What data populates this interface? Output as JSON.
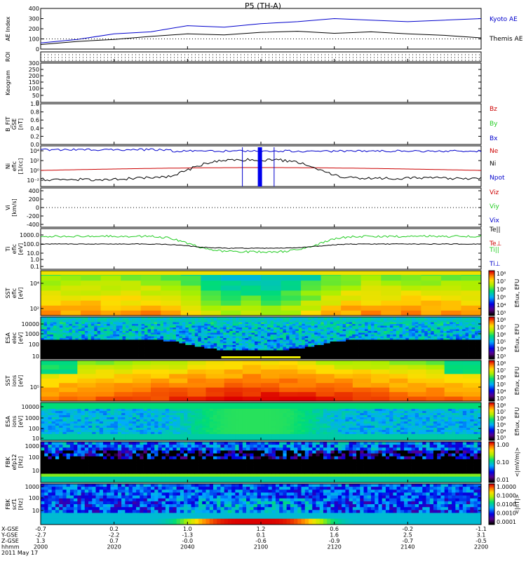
{
  "title": "P5 (TH-A)",
  "chart_data": [
    {
      "type": "line",
      "ylabel": [
        "AE Index"
      ],
      "ylim": [
        0,
        400
      ],
      "yticks": [
        "400",
        "300",
        "200",
        "100",
        "0"
      ],
      "series": [
        {
          "name": "Kyoto AE",
          "color": "#0000cc",
          "x": [
            0,
            10,
            20,
            30,
            40,
            50,
            60,
            70,
            80,
            90,
            100,
            110,
            120
          ],
          "values": [
            60,
            95,
            150,
            170,
            230,
            215,
            250,
            270,
            300,
            285,
            270,
            285,
            300
          ]
        },
        {
          "name": "Themis AE",
          "color": "#000000",
          "x": [
            0,
            10,
            20,
            30,
            40,
            50,
            60,
            70,
            80,
            90,
            100,
            110,
            120
          ],
          "values": [
            45,
            75,
            95,
            125,
            150,
            140,
            165,
            175,
            155,
            170,
            150,
            135,
            110
          ]
        }
      ]
    },
    {
      "type": "other",
      "ylabel": [
        "ROI"
      ]
    },
    {
      "type": "heatmap",
      "ylabel": [
        "Keogram"
      ],
      "ylim": [
        0,
        300
      ],
      "yticks": [
        "300",
        "250",
        "200",
        "150",
        "100",
        "50",
        "0"
      ]
    },
    {
      "type": "line",
      "ylabel": [
        "B_FIT",
        "GSE",
        "[nT]"
      ],
      "ylim": [
        0,
        1
      ],
      "yticks": [
        "1.0",
        "0.8",
        "0.6",
        "0.4",
        "0.2",
        "0.0"
      ],
      "series": [
        {
          "name": "Bz",
          "color": "#cc0000"
        },
        {
          "name": "By",
          "color": "#22cc22"
        },
        {
          "name": "Bx",
          "color": "#0000cc"
        }
      ]
    },
    {
      "type": "line",
      "ylabel": [
        "Ni",
        "eflc",
        "[1/cc]"
      ],
      "yticks": [
        "10⁴",
        "10²",
        "10⁰",
        "10⁻²"
      ],
      "series": [
        {
          "name": "Ne",
          "color": "#cc0000"
        },
        {
          "name": "Ni",
          "color": "#000000"
        },
        {
          "name": "Npot",
          "color": "#0000cc"
        }
      ]
    },
    {
      "type": "line",
      "ylabel": [
        "Vi",
        "[km/s]"
      ],
      "ylim": [
        -400,
        400
      ],
      "yticks": [
        "400",
        "200",
        "0",
        "-200",
        "-400"
      ],
      "series": [
        {
          "name": "Viz",
          "color": "#cc0000"
        },
        {
          "name": "Viy",
          "color": "#22cc22"
        },
        {
          "name": "Vix",
          "color": "#0000cc"
        }
      ]
    },
    {
      "type": "line",
      "ylabel": [
        "Ti",
        "eflc",
        "[eV]"
      ],
      "yticks": [
        "1000.0",
        "100.0",
        "10.0",
        "1.0",
        "0.1"
      ],
      "series": [
        {
          "name": "Te||",
          "color": "#000000"
        },
        {
          "name": "Te⊥",
          "color": "#cc0000"
        },
        {
          "name": "Ti||",
          "color": "#22cc22"
        },
        {
          "name": "Ti⊥",
          "color": "#0000cc"
        }
      ]
    },
    {
      "type": "heatmap",
      "ylabel": [
        "SST",
        "eflc",
        "[eV]"
      ],
      "yticks": [
        "10⁴",
        "10²"
      ],
      "colorbar_label": "Eflux, EFU",
      "colorbar_ticks": [
        "10⁸",
        "10⁷",
        "10⁶",
        "10⁵",
        "10⁴",
        "10³"
      ]
    },
    {
      "type": "heatmap",
      "ylabel": [
        "ESA",
        "elec",
        "[eV]"
      ],
      "yticks": [
        "10000",
        "1000",
        "100",
        "10"
      ],
      "colorbar_label": "Eflux, EFU",
      "colorbar_ticks": [
        "10⁸",
        "10⁷",
        "10⁶",
        "10⁵",
        "10⁴",
        "10³"
      ]
    },
    {
      "type": "heatmap",
      "ylabel": [
        "SST",
        "ions",
        "[eV]"
      ],
      "yticks": [
        "10⁵"
      ],
      "colorbar_label": "Eflux, EFU",
      "colorbar_ticks": [
        "10⁸",
        "10⁷",
        "10⁶",
        "10⁵",
        "10⁴",
        "10³"
      ]
    },
    {
      "type": "heatmap",
      "ylabel": [
        "ESA",
        "ions",
        "[eV]"
      ],
      "yticks": [
        "10000",
        "1000",
        "100",
        "10"
      ],
      "colorbar_label": "Eflux, EFU",
      "colorbar_ticks": [
        "10⁸",
        "10⁷",
        "10⁶",
        "10⁵",
        "10⁴",
        "10³"
      ]
    },
    {
      "type": "heatmap",
      "ylabel": [
        "FBK",
        "efp12",
        "[Hz]"
      ],
      "yticks": [
        "1000",
        "100",
        "10"
      ],
      "colorbar_label": "<|mV/m|>",
      "colorbar_ticks": [
        "1.00",
        "0.10",
        "0.01"
      ]
    },
    {
      "type": "heatmap",
      "ylabel": [
        "FBK",
        "scf1",
        "[Hz]"
      ],
      "yticks": [
        "1000",
        "100",
        "10"
      ],
      "colorbar_label": "<|nT|>",
      "colorbar_ticks": [
        "1.0000",
        "0.1000",
        "0.0100",
        "0.0010",
        "0.0001"
      ]
    }
  ],
  "xaxis": {
    "row_labels": [
      "X-GSE",
      "Y-GSE",
      "Z-GSE",
      "hhmm",
      "2011 May 17"
    ],
    "columns": [
      {
        "x": "-0.7",
        "y": "-2.7",
        "z": "1.3",
        "t": "2000"
      },
      {
        "x": "0.2",
        "y": "-2.2",
        "z": "0.7",
        "t": "2020"
      },
      {
        "x": "1.0",
        "y": "-1.3",
        "z": "-0.0",
        "t": "2040"
      },
      {
        "x": "1.2",
        "y": "0.1",
        "z": "-0.6",
        "t": "2100"
      },
      {
        "x": "0.6",
        "y": "1.6",
        "z": "-0.9",
        "t": "2120"
      },
      {
        "x": "-0.2",
        "y": "2.5",
        "z": "-0.7",
        "t": "2140"
      },
      {
        "x": "-1.1",
        "y": "3.1",
        "z": "-0.5",
        "t": "2200"
      }
    ]
  }
}
